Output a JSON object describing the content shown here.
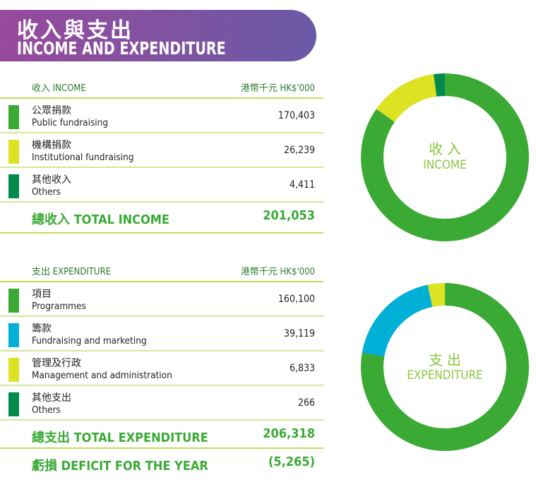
{
  "title": {
    "zh": "收入與支出",
    "en": "INCOME AND EXPENDITURE"
  },
  "income": {
    "header": "收入 INCOME",
    "unit": "港幣千元 HK$'000",
    "items": [
      {
        "zh": "公眾捐款",
        "en": "Public fundraising",
        "value": "170,403",
        "amount": 170403,
        "color": "#3aaa35"
      },
      {
        "zh": "機構捐款",
        "en": "Institutional fundraising",
        "value": "26,239",
        "amount": 26239,
        "color": "#dde223"
      },
      {
        "zh": "其他收入",
        "en": "Others",
        "value": "4,411",
        "amount": 4411,
        "color": "#008a4b"
      }
    ],
    "total_label": "總收入 TOTAL INCOME",
    "total": "201,053",
    "chart": {
      "zh": "收 入",
      "en": "INCOME"
    }
  },
  "expenditure": {
    "header": "支出 EXPENDITURE",
    "unit": "港幣千元 HK$'000",
    "items": [
      {
        "zh": "項目",
        "en": "Programmes",
        "value": "160,100",
        "amount": 160100,
        "color": "#3aaa35"
      },
      {
        "zh": "籌款",
        "en": "Fundraising and marketing",
        "value": "39,119",
        "amount": 39119,
        "color": "#00b0d6"
      },
      {
        "zh": "管理及行政",
        "en": "Management and administration",
        "value": "6,833",
        "amount": 6833,
        "color": "#dde223"
      },
      {
        "zh": "其他支出",
        "en": "Others",
        "value": "266",
        "amount": 266,
        "color": "#008a4b"
      }
    ],
    "total_label": "總支出 TOTAL EXPENDITURE",
    "total": "206,318",
    "chart": {
      "zh": "支 出",
      "en": "EXPENDITURE"
    }
  },
  "deficit": {
    "label": "虧損 DEFICIT FOR THE YEAR",
    "value": "(5,265)"
  }
}
